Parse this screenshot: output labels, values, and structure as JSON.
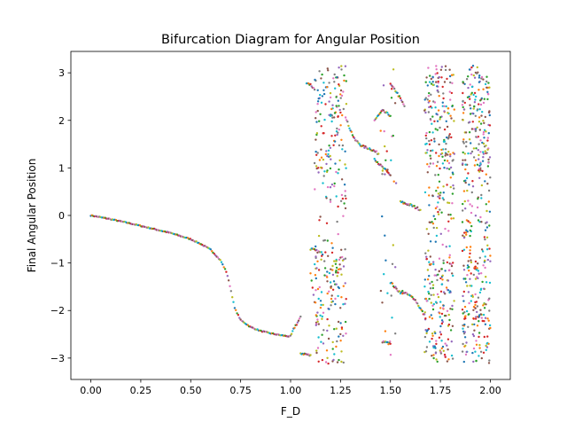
{
  "chart_data": {
    "type": "scatter",
    "title": "Bifurcation Diagram for Angular Position",
    "xlabel": "F_D",
    "ylabel": "Final Angular Position",
    "xlim": [
      -0.1,
      2.1
    ],
    "ylim": [
      -3.45,
      3.45
    ],
    "x_ticks": [
      0.0,
      0.25,
      0.5,
      0.75,
      1.0,
      1.25,
      1.5,
      1.75,
      2.0
    ],
    "x_tick_labels": [
      "0.00",
      "0.25",
      "0.50",
      "0.75",
      "1.00",
      "1.25",
      "1.50",
      "1.75",
      "2.00"
    ],
    "y_ticks": [
      -3,
      -2,
      -1,
      0,
      1,
      2,
      3
    ],
    "y_tick_labels": [
      "−3",
      "−2",
      "−1",
      "0",
      "1",
      "2",
      "3"
    ],
    "grid": false,
    "marker_size": 1.2,
    "series_colors": [
      "#1f77b4",
      "#ff7f0e",
      "#2ca02c",
      "#d62728",
      "#9467bd",
      "#8c564b",
      "#e377c2",
      "#7f7f7f",
      "#bcbd22",
      "#17becf"
    ],
    "regular_branch": {
      "description_of_values": "single-valued steady state for F_D from 0 to about 1.0",
      "x": [
        0.0,
        0.1,
        0.2,
        0.3,
        0.4,
        0.5,
        0.55,
        0.6,
        0.65,
        0.68,
        0.7,
        0.72,
        0.75,
        0.8,
        0.85,
        0.9,
        0.95,
        1.0
      ],
      "y": [
        0.0,
        -0.08,
        -0.17,
        -0.27,
        -0.37,
        -0.5,
        -0.6,
        -0.72,
        -0.95,
        -1.2,
        -1.55,
        -1.95,
        -2.2,
        -2.35,
        -2.43,
        -2.48,
        -2.52,
        -2.55
      ]
    },
    "chaotic_bands_x": [
      [
        1.12,
        1.28
      ],
      [
        1.45,
        1.53
      ],
      [
        1.67,
        1.82
      ],
      [
        1.86,
        2.0
      ]
    ],
    "periodic_curves": [
      {
        "x": [
          1.0,
          1.02,
          1.05
        ],
        "y": [
          -2.55,
          -2.35,
          -2.15
        ]
      },
      {
        "x": [
          1.05,
          1.08,
          1.1
        ],
        "y": [
          -2.9,
          -2.92,
          -2.95
        ]
      },
      {
        "x": [
          1.08,
          1.1,
          1.12
        ],
        "y": [
          2.8,
          2.75,
          2.65
        ]
      },
      {
        "x": [
          1.1,
          1.13,
          1.16
        ],
        "y": [
          -0.7,
          -0.75,
          -0.8
        ]
      },
      {
        "x": [
          1.1,
          1.11,
          1.12
        ],
        "y": [
          -1.2,
          -1.5,
          -1.8
        ]
      },
      {
        "x": [
          1.28,
          1.32,
          1.36,
          1.4,
          1.44
        ],
        "y": [
          2.0,
          1.6,
          1.45,
          1.4,
          1.3
        ]
      },
      {
        "x": [
          1.42,
          1.45,
          1.5
        ],
        "y": [
          1.2,
          1.05,
          0.85
        ]
      },
      {
        "x": [
          1.42,
          1.46,
          1.5
        ],
        "y": [
          2.0,
          2.2,
          2.1
        ]
      },
      {
        "x": [
          1.5,
          1.53,
          1.57
        ],
        "y": [
          2.75,
          2.6,
          2.3
        ]
      },
      {
        "x": [
          1.55,
          1.6,
          1.65
        ],
        "y": [
          0.28,
          0.22,
          0.12
        ]
      },
      {
        "x": [
          1.5,
          1.53,
          1.56
        ],
        "y": [
          -1.4,
          -1.55,
          -1.65
        ]
      },
      {
        "x": [
          1.56,
          1.62,
          1.67
        ],
        "y": [
          -1.6,
          -1.75,
          -2.1
        ]
      },
      {
        "x": [
          1.46,
          1.5
        ],
        "y": [
          -2.65,
          -2.7
        ]
      }
    ]
  }
}
